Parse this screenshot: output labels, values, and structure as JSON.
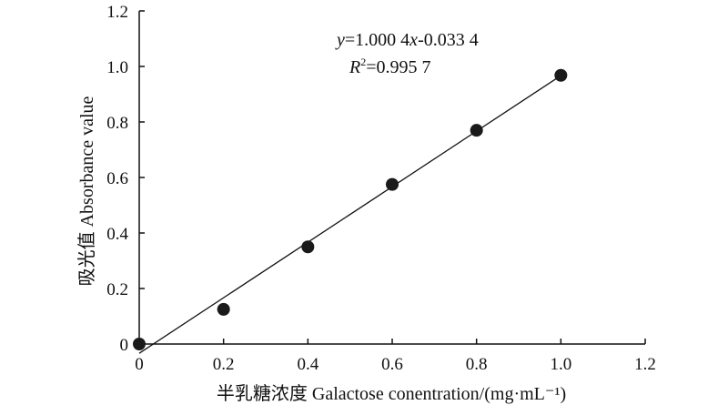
{
  "chart_data": {
    "type": "scatter",
    "xlabel": "半乳糖浓度 Galactose conentration/(mg·mL⁻¹)",
    "ylabel": "吸光值 Absorbance value",
    "xlim": [
      0,
      1.2
    ],
    "ylim": [
      0,
      1.2
    ],
    "x_ticks": [
      "0",
      "0.2",
      "0.4",
      "0.6",
      "0.8",
      "1.0",
      "1.2"
    ],
    "y_ticks": [
      "0",
      "0.2",
      "0.4",
      "0.6",
      "0.8",
      "1.0",
      "1.2"
    ],
    "x_tick_values": [
      0,
      0.2,
      0.4,
      0.6,
      0.8,
      1.0,
      1.2
    ],
    "y_tick_values": [
      0,
      0.2,
      0.4,
      0.6,
      0.8,
      1.0,
      1.2
    ],
    "grid": false,
    "series": [
      {
        "x": [
          0,
          0.2,
          0.4,
          0.6,
          0.8,
          1.0
        ],
        "y": [
          0.0,
          0.125,
          0.35,
          0.575,
          0.77,
          0.968
        ]
      }
    ],
    "fit_line": {
      "slope": 1.0004,
      "intercept": -0.0334,
      "x_range": [
        0,
        1.0
      ]
    },
    "annotations": {
      "equation": {
        "y_var": "y",
        "body": "=1.000 4",
        "x_var": "x",
        "tail": "-0.033 4"
      },
      "r_squared": {
        "var": "R",
        "sup": "2",
        "value": "=0.995 7"
      }
    }
  }
}
